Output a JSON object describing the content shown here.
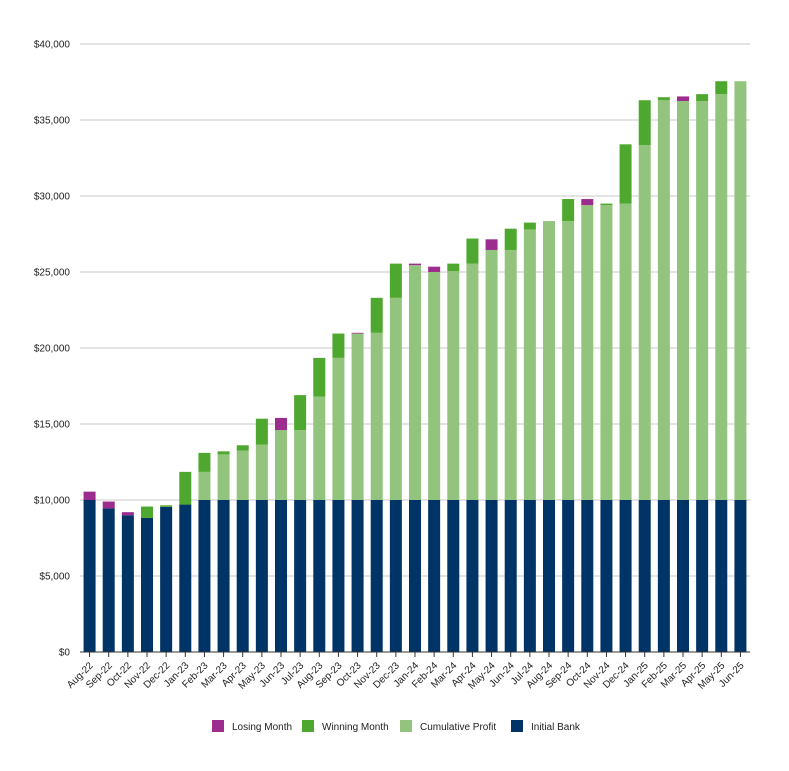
{
  "chart_data": {
    "type": "bar",
    "stacked": true,
    "title": "",
    "xlabel": "",
    "ylabel": "",
    "ylim": [
      0,
      40000
    ],
    "yticks": [
      0,
      5000,
      10000,
      15000,
      20000,
      25000,
      30000,
      35000,
      40000
    ],
    "ytick_labels": [
      "$0",
      "$5,000",
      "$10,000",
      "$15,000",
      "$20,000",
      "$25,000",
      "$30,000",
      "$35,000",
      "$40,000"
    ],
    "grid": true,
    "legend_position": "bottom",
    "categories": [
      "Aug-22",
      "Sep-22",
      "Oct-22",
      "Nov-22",
      "Dec-22",
      "Jan-23",
      "Feb-23",
      "Mar-23",
      "Apr-23",
      "May-23",
      "Jun-23",
      "Jul-23",
      "Aug-23",
      "Sep-23",
      "Oct-23",
      "Nov-23",
      "Dec-23",
      "Jan-24",
      "Feb-24",
      "Mar-24",
      "Apr-24",
      "May-24",
      "Jun-24",
      "Jul-24",
      "Aug-24",
      "Sep-24",
      "Oct-24",
      "Nov-24",
      "Dec-24",
      "Jan-25",
      "Feb-25",
      "Mar-25",
      "Apr-25",
      "May-25",
      "Jun-25"
    ],
    "series": [
      {
        "name": "Initial Bank",
        "color": "#003366",
        "values": [
          10000,
          9450,
          9000,
          8820,
          9550,
          9700,
          10000,
          10000,
          10000,
          10000,
          10000,
          10000,
          10000,
          10000,
          10000,
          10000,
          10000,
          10000,
          10000,
          10000,
          10000,
          10000,
          10000,
          10000,
          10000,
          10000,
          10000,
          10000,
          10000,
          10000,
          10000,
          10000,
          10000,
          10000,
          10000
        ]
      },
      {
        "name": "Cumulative Profit",
        "color": "#93c47d",
        "values": [
          0,
          0,
          0,
          0,
          0,
          0,
          1850,
          3000,
          3250,
          3650,
          4600,
          4600,
          6800,
          9350,
          10950,
          11000,
          13300,
          15450,
          15000,
          15050,
          15550,
          16450,
          16450,
          17800,
          18350,
          18350,
          19400,
          19400,
          19500,
          23350,
          26300,
          26250,
          26250,
          26700,
          27550
        ]
      },
      {
        "name": "Winning Month",
        "color": "#4ea72e",
        "values": [
          0,
          0,
          0,
          750,
          100,
          2150,
          1250,
          200,
          350,
          1700,
          0,
          2300,
          2550,
          1600,
          0,
          2300,
          2250,
          0,
          0,
          500,
          1650,
          0,
          1400,
          450,
          0,
          1450,
          0,
          100,
          3900,
          2950,
          200,
          0,
          450,
          850,
          0
        ]
      },
      {
        "name": "Losing Month",
        "color": "#9c2c8e",
        "values": [
          550,
          450,
          200,
          0,
          0,
          0,
          0,
          0,
          0,
          0,
          800,
          0,
          0,
          0,
          50,
          0,
          0,
          100,
          350,
          0,
          0,
          700,
          0,
          0,
          0,
          0,
          400,
          0,
          0,
          0,
          0,
          300,
          0,
          0,
          0
        ]
      }
    ],
    "legend": [
      "Losing Month",
      "Winning Month",
      "Cumulative Profit",
      "Initial Bank"
    ]
  }
}
